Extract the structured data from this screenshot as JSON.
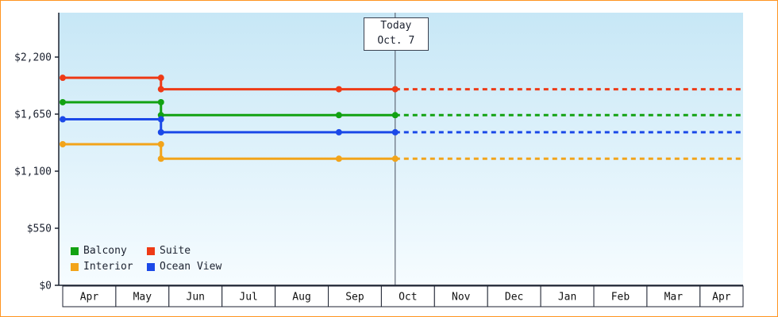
{
  "frame": {
    "border_color": "#FF9420",
    "plot_top_color": "#C7E7F6",
    "plot_bottom_color": "#F6FCFF",
    "axis_color": "#1C2230",
    "today_line_color": "#49505E"
  },
  "chart_data": {
    "type": "line",
    "title": "",
    "categories": [
      "Apr",
      "May",
      "Jun",
      "Jul",
      "Aug",
      "Sep",
      "Oct",
      "Nov",
      "Dec",
      "Jan",
      "Feb",
      "Mar",
      "Apr"
    ],
    "y_ticks": [
      {
        "v": 0,
        "label": "$0"
      },
      {
        "v": 550,
        "label": "$550"
      },
      {
        "v": 1100,
        "label": "$1,100"
      },
      {
        "v": 1650,
        "label": "$1,650"
      },
      {
        "v": 2200,
        "label": "$2,200"
      }
    ],
    "ylim": [
      0,
      2350
    ],
    "today_label_line1": "Today",
    "today_label_line2": "Oct. 7",
    "today_month": 6.26,
    "step_month": 1.85,
    "sep_marker_month": 5.2,
    "end_month": 12.81,
    "series": [
      {
        "name": "Suite",
        "color": "#EE3A16",
        "start": 2000,
        "current": 1890
      },
      {
        "name": "Balcony",
        "color": "#12A212",
        "start": 1765,
        "current": 1640
      },
      {
        "name": "Ocean View",
        "color": "#1B49E8",
        "start": 1600,
        "current": 1475
      },
      {
        "name": "Interior",
        "color": "#F2A41A",
        "start": 1360,
        "current": 1220
      }
    ],
    "legend_rows": [
      [
        "Balcony",
        "Suite"
      ],
      [
        "Interior",
        "Ocean View"
      ]
    ],
    "notes_solid_range": "solid line from Apr to today, dotted projection from today to right edge"
  }
}
